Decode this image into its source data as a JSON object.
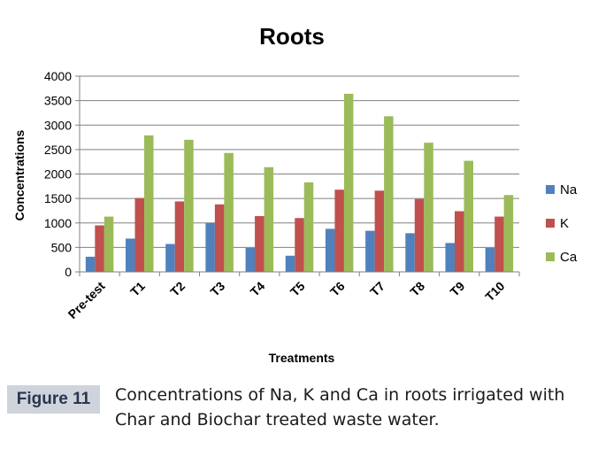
{
  "chart_data": {
    "type": "bar",
    "title": "Roots",
    "xlabel": "Treatments",
    "ylabel": "Concentrations",
    "ylim": [
      0,
      4000
    ],
    "yticks": [
      0,
      500,
      1000,
      1500,
      2000,
      2500,
      3000,
      3500,
      4000
    ],
    "grid": true,
    "legend_position": "right",
    "categories": [
      "Pre-test",
      "T1",
      "T2",
      "T3",
      "T4",
      "T5",
      "T6",
      "T7",
      "T8",
      "T9",
      "T10"
    ],
    "series": [
      {
        "name": "Na",
        "color": "#4f81bd",
        "values": [
          310,
          680,
          570,
          1000,
          490,
          330,
          880,
          840,
          790,
          590,
          490
        ]
      },
      {
        "name": "K",
        "color": "#c0504d",
        "values": [
          950,
          1510,
          1440,
          1380,
          1140,
          1100,
          1680,
          1660,
          1490,
          1240,
          1130
        ]
      },
      {
        "name": "Ca",
        "color": "#9bbb59",
        "values": [
          1130,
          2790,
          2700,
          2430,
          2140,
          1830,
          3640,
          3180,
          2640,
          2270,
          1570
        ]
      }
    ]
  },
  "caption": {
    "label": "Figure 11",
    "text": "Concentrations of Na, K and Ca in roots irrigated with\nChar and Biochar treated waste water."
  }
}
